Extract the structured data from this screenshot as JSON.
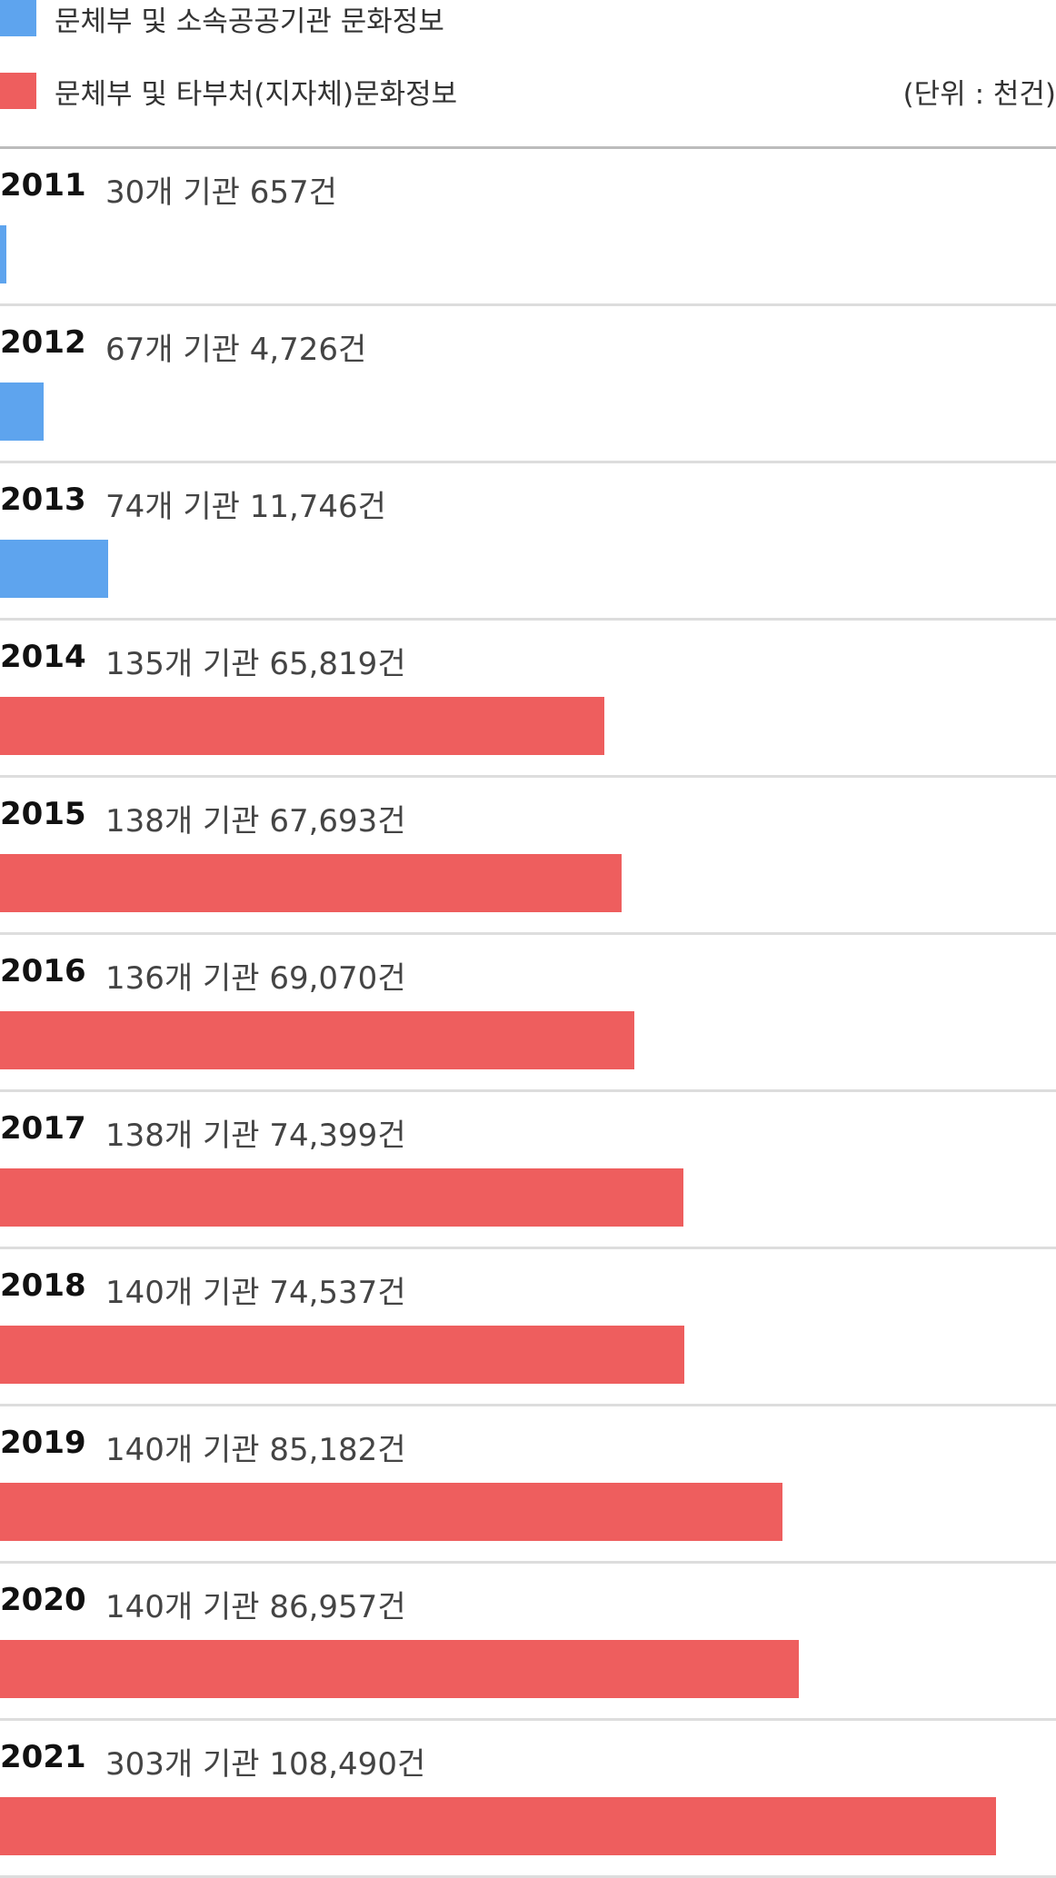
{
  "legend": [
    {
      "label": "문체부 및 소속공공기관 문화정보",
      "color": "#5ea4ee"
    },
    {
      "label": "문체부 및 타부처(지자체)문화정보",
      "color": "#ee5e5e"
    }
  ],
  "unit": "(단위 : 천건)",
  "chart_data": {
    "type": "bar",
    "orientation": "horizontal",
    "legend_position": "top-left",
    "xlim": [
      0,
      115000
    ],
    "categories": [
      "2011",
      "2012",
      "2013",
      "2014",
      "2015",
      "2016",
      "2017",
      "2018",
      "2019",
      "2020",
      "2021"
    ],
    "rows": [
      {
        "year": "2011",
        "desc": "30개 기관 657건",
        "value": 657,
        "series": 0
      },
      {
        "year": "2012",
        "desc": "67개 기관 4,726건",
        "value": 4726,
        "series": 0
      },
      {
        "year": "2013",
        "desc": "74개 기관 11,746건",
        "value": 11746,
        "series": 0
      },
      {
        "year": "2014",
        "desc": "135개 기관 65,819건",
        "value": 65819,
        "series": 1
      },
      {
        "year": "2015",
        "desc": "138개 기관 67,693건",
        "value": 67693,
        "series": 1
      },
      {
        "year": "2016",
        "desc": "136개 기관 69,070건",
        "value": 69070,
        "series": 1
      },
      {
        "year": "2017",
        "desc": "138개 기관 74,399건",
        "value": 74399,
        "series": 1
      },
      {
        "year": "2018",
        "desc": "140개 기관 74,537건",
        "value": 74537,
        "series": 1
      },
      {
        "year": "2019",
        "desc": "140개 기관 85,182건",
        "value": 85182,
        "series": 1
      },
      {
        "year": "2020",
        "desc": "140개 기관 86,957건",
        "value": 86957,
        "series": 1
      },
      {
        "year": "2021",
        "desc": "303개 기관 108,490건",
        "value": 108490,
        "series": 1
      }
    ]
  }
}
